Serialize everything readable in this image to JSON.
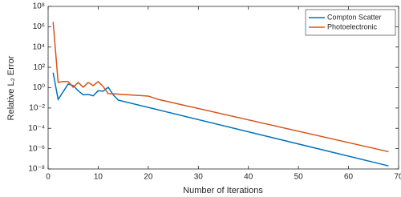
{
  "chart_data": {
    "type": "line",
    "xlabel": "Number of Iterations",
    "ylabel": "Relative L₂ Error",
    "xlim": [
      0,
      70
    ],
    "xticks": [
      0,
      10,
      20,
      30,
      40,
      50,
      60,
      70
    ],
    "ylim": [
      1e-08,
      100000000.0
    ],
    "log_y": true,
    "yticks": [
      {
        "value": 1e-08,
        "label": "10⁻⁸"
      },
      {
        "value": 1e-06,
        "label": "10⁻⁶"
      },
      {
        "value": 0.0001,
        "label": "10⁻⁴"
      },
      {
        "value": 0.01,
        "label": "10⁻²"
      },
      {
        "value": 1,
        "label": "10⁰"
      },
      {
        "value": 100,
        "label": "10²"
      },
      {
        "value": 10000,
        "label": "10⁴"
      },
      {
        "value": 1000000,
        "label": "10⁶"
      },
      {
        "value": 100000000,
        "label": "10⁸"
      }
    ],
    "legend": "top-right",
    "series": [
      {
        "name": "Compton Scatter",
        "color": "#0072bd",
        "x": [
          1,
          2,
          3,
          4,
          5,
          6,
          7,
          8,
          9,
          10,
          11,
          12,
          13,
          14,
          68
        ],
        "values": [
          30,
          0.07,
          0.4,
          2.3,
          1.6,
          0.5,
          0.2,
          0.22,
          0.16,
          0.5,
          0.45,
          1.1,
          0.2,
          0.06,
          2e-08
        ]
      },
      {
        "name": "Photoelectronic",
        "color": "#d95319",
        "x": [
          1,
          2,
          3,
          4,
          5,
          6,
          7,
          8,
          9,
          10,
          11,
          12,
          13,
          20,
          22,
          68
        ],
        "values": [
          3000000,
          3.3,
          4,
          4,
          1.1,
          3.3,
          1.1,
          3.3,
          1.6,
          4,
          1.3,
          0.26,
          0.25,
          0.15,
          0.07,
          5e-07
        ]
      }
    ]
  }
}
